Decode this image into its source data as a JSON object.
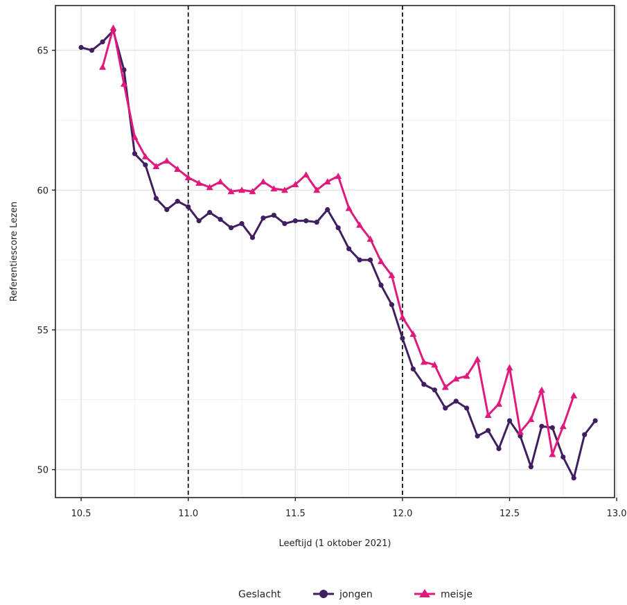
{
  "chart_data": {
    "type": "line",
    "xlabel": "Leeftijd (1 oktober 2021)",
    "ylabel": "Referentiescore Lezen",
    "xlim": [
      10.38,
      12.99
    ],
    "ylim": [
      49.0,
      66.6
    ],
    "x_ticks": [
      {
        "value": 10.5,
        "label": "10.5"
      },
      {
        "value": 11.0,
        "label": "11.0"
      },
      {
        "value": 11.5,
        "label": "11.5"
      },
      {
        "value": 12.0,
        "label": "12.0"
      },
      {
        "value": 12.5,
        "label": "12.5"
      },
      {
        "value": 13.0,
        "label": "13.0"
      }
    ],
    "y_ticks": [
      {
        "value": 50,
        "label": "50"
      },
      {
        "value": 55,
        "label": "55"
      },
      {
        "value": 60,
        "label": "60"
      },
      {
        "value": 65,
        "label": "65"
      }
    ],
    "minor_x": [
      10.75,
      11.25,
      11.75,
      12.25,
      12.75
    ],
    "minor_y": [
      52.5,
      57.5,
      62.5
    ],
    "vlines": [
      11.0,
      12.0
    ],
    "grid": true,
    "legend": {
      "title": "Geslacht",
      "position": "bottom"
    },
    "series": [
      {
        "name": "jongen",
        "color": "#3f1f5f",
        "marker": "circle",
        "x": [
          10.5,
          10.55,
          10.6,
          10.65,
          10.7,
          10.75,
          10.8,
          10.85,
          10.9,
          10.95,
          11.0,
          11.05,
          11.1,
          11.15,
          11.2,
          11.25,
          11.3,
          11.35,
          11.4,
          11.45,
          11.5,
          11.55,
          11.6,
          11.65,
          11.7,
          11.75,
          11.8,
          11.85,
          11.9,
          11.95,
          12.0,
          12.05,
          12.1,
          12.15,
          12.2,
          12.25,
          12.3,
          12.35,
          12.4,
          12.45,
          12.5,
          12.55,
          12.6,
          12.65,
          12.7,
          12.75,
          12.8,
          12.85,
          12.9
        ],
        "y": [
          65.1,
          65.0,
          65.3,
          65.7,
          64.3,
          61.3,
          60.9,
          59.7,
          59.3,
          59.6,
          59.4,
          58.9,
          59.2,
          58.95,
          58.65,
          58.8,
          58.3,
          59.0,
          59.1,
          58.8,
          58.9,
          58.9,
          58.85,
          59.3,
          58.65,
          57.9,
          57.5,
          57.5,
          56.6,
          55.9,
          54.7,
          53.6,
          53.05,
          52.85,
          52.2,
          52.45,
          52.2,
          51.2,
          51.4,
          50.75,
          51.75,
          51.2,
          50.1,
          51.55,
          51.5,
          50.45,
          49.7,
          51.25,
          51.75
        ]
      },
      {
        "name": "meisje",
        "color": "#e0197d",
        "marker": "triangle",
        "x": [
          10.6,
          10.65,
          10.7,
          10.75,
          10.8,
          10.85,
          10.9,
          10.95,
          11.0,
          11.05,
          11.1,
          11.15,
          11.2,
          11.25,
          11.3,
          11.35,
          11.4,
          11.45,
          11.5,
          11.55,
          11.6,
          11.65,
          11.7,
          11.75,
          11.8,
          11.85,
          11.9,
          11.95,
          12.0,
          12.05,
          12.1,
          12.15,
          12.2,
          12.25,
          12.3,
          12.35,
          12.4,
          12.45,
          12.5,
          12.55,
          12.6,
          12.65,
          12.7,
          12.75,
          12.8
        ],
        "y": [
          64.4,
          65.8,
          63.8,
          61.9,
          61.2,
          60.85,
          61.05,
          60.75,
          60.45,
          60.25,
          60.1,
          60.3,
          59.95,
          60.0,
          59.95,
          60.3,
          60.05,
          60.0,
          60.2,
          60.55,
          60.0,
          60.3,
          60.5,
          59.35,
          58.75,
          58.25,
          57.45,
          56.95,
          55.45,
          54.85,
          53.85,
          53.75,
          52.95,
          53.25,
          53.35,
          53.95,
          51.95,
          52.35,
          53.65,
          51.35,
          51.8,
          52.85,
          50.55,
          51.55,
          52.65
        ]
      }
    ]
  }
}
